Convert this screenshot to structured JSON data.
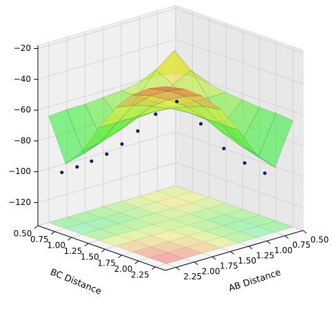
{
  "chart_data": {
    "type": "surface3d",
    "xlabel": "AB Distance",
    "ylabel": "BC Distance",
    "xlim": [
      0.5,
      2.4
    ],
    "ylim": [
      0.5,
      2.4
    ],
    "zlim": [
      -135,
      -18
    ],
    "xticks": [
      {
        "value": 0.5,
        "label": "0.50"
      },
      {
        "value": 0.75,
        "label": "0.75"
      },
      {
        "value": 1.0,
        "label": "1.00"
      },
      {
        "value": 1.25,
        "label": "1.25"
      },
      {
        "value": 1.5,
        "label": "1.50"
      },
      {
        "value": 1.75,
        "label": "1.75"
      },
      {
        "value": 2.0,
        "label": "2.00"
      },
      {
        "value": 2.25,
        "label": "2.25"
      }
    ],
    "yticks": [
      {
        "value": 0.5,
        "label": "0.50"
      },
      {
        "value": 0.75,
        "label": "0.75"
      },
      {
        "value": 1.0,
        "label": "1.00"
      },
      {
        "value": 1.25,
        "label": "1.25"
      },
      {
        "value": 1.5,
        "label": "1.50"
      },
      {
        "value": 1.75,
        "label": "1.75"
      },
      {
        "value": 2.0,
        "label": "2.00"
      },
      {
        "value": 2.25,
        "label": "2.25"
      }
    ],
    "zticks": [
      {
        "value": -20,
        "label": "−20"
      },
      {
        "value": -40,
        "label": "−40"
      },
      {
        "value": -60,
        "label": "−60"
      },
      {
        "value": -80,
        "label": "−80"
      },
      {
        "value": -100,
        "label": "−100"
      },
      {
        "value": -120,
        "label": "−120"
      }
    ],
    "grid": true,
    "surface": {
      "x": [
        0.5,
        0.75,
        1.0,
        1.25,
        1.5,
        1.75,
        2.0,
        2.25
      ],
      "y": [
        0.5,
        0.75,
        1.0,
        1.25,
        1.5,
        1.75,
        2.0,
        2.25
      ],
      "z": [
        [
          -62,
          -60,
          -61,
          -63,
          -64,
          -65,
          -65,
          -66
        ],
        [
          -60,
          -40,
          -49,
          -63,
          -75,
          -84,
          -90,
          -93
        ],
        [
          -61,
          -49,
          -55,
          -63,
          -70,
          -75,
          -79,
          -81
        ],
        [
          -63,
          -63,
          -63,
          -62,
          -62,
          -62,
          -62,
          -62
        ],
        [
          -64,
          -75,
          -70,
          -62,
          -56,
          -51,
          -47,
          -45
        ],
        [
          -65,
          -84,
          -75,
          -62,
          -51,
          -43,
          -37,
          -33
        ],
        [
          -65,
          -90,
          -79,
          -62,
          -47,
          -37,
          -30,
          -25
        ],
        [
          -66,
          -93,
          -81,
          -62,
          -45,
          -33,
          -25,
          -20
        ]
      ]
    },
    "points": {
      "color": "#0a1a5c",
      "x": [
        2.3,
        2.1,
        1.9,
        1.7,
        1.5,
        1.3,
        1.1,
        0.9,
        0.8,
        0.76,
        0.75,
        0.75
      ],
      "y": [
        0.75,
        0.76,
        0.76,
        0.77,
        0.78,
        0.8,
        0.85,
        0.95,
        1.2,
        1.5,
        1.8,
        2.1
      ],
      "z": [
        -98,
        -97,
        -96,
        -94,
        -90,
        -84,
        -75,
        -68,
        -80,
        -92,
        -97,
        -99
      ]
    }
  }
}
